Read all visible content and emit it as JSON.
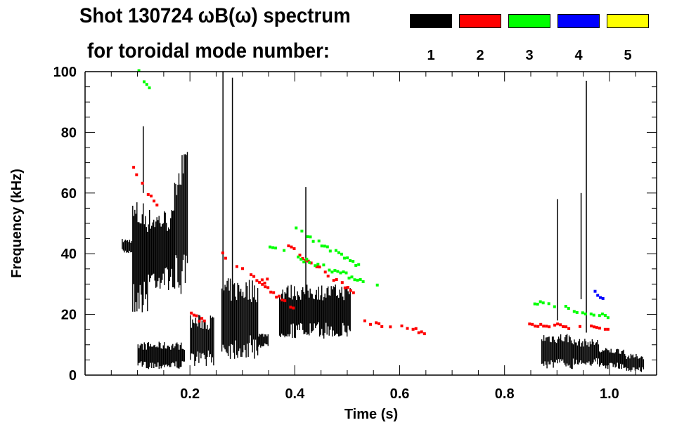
{
  "chart_data": {
    "type": "heatmap",
    "title": "Shot 130724 ωB(ω) spectrum",
    "subtitle": "for toroidal mode number:",
    "xlabel": "Time (s)",
    "ylabel": "Frequency (kHz)",
    "xlim": [
      0,
      1.09
    ],
    "ylim": [
      0,
      100
    ],
    "xticks": [
      0.2,
      0.4,
      0.6,
      0.8,
      1.0
    ],
    "xtick_labels": [
      "0.2",
      "0.4",
      "0.6",
      "0.8",
      "1.0"
    ],
    "yticks": [
      0,
      20,
      40,
      60,
      80,
      100
    ],
    "ytick_labels": [
      "0",
      "20",
      "40",
      "60",
      "80",
      "100"
    ],
    "legend": {
      "placement": "top-right",
      "entries": [
        {
          "label": "1",
          "color": "#000000"
        },
        {
          "label": "2",
          "color": "#ff0000"
        },
        {
          "label": "3",
          "color": "#00ff00"
        },
        {
          "label": "4",
          "color": "#0000ff"
        },
        {
          "label": "5",
          "color": "#ffff00"
        }
      ]
    },
    "blobs": [
      {
        "mode": 1,
        "t": [
          0.07,
          0.09
        ],
        "f": [
          40,
          45
        ]
      },
      {
        "mode": 1,
        "t": [
          0.09,
          0.12
        ],
        "f": [
          20,
          58
        ]
      },
      {
        "mode": 1,
        "t": [
          0.12,
          0.17
        ],
        "f": [
          28,
          55
        ]
      },
      {
        "mode": 1,
        "t": [
          0.17,
          0.195
        ],
        "f": [
          25,
          74
        ]
      },
      {
        "mode": 1,
        "t": [
          0.1,
          0.19
        ],
        "f": [
          2,
          11
        ]
      },
      {
        "mode": 1,
        "t": [
          0.2,
          0.245
        ],
        "f": [
          3,
          20
        ]
      },
      {
        "mode": 1,
        "t": [
          0.26,
          0.33
        ],
        "f": [
          5,
          32
        ]
      },
      {
        "mode": 1,
        "t": [
          0.33,
          0.35
        ],
        "f": [
          9,
          14
        ]
      },
      {
        "mode": 1,
        "t": [
          0.37,
          0.505
        ],
        "f": [
          12,
          30
        ]
      },
      {
        "mode": 1,
        "t": [
          0.87,
          0.93
        ],
        "f": [
          2,
          14
        ]
      },
      {
        "mode": 1,
        "t": [
          0.93,
          0.98
        ],
        "f": [
          3,
          12
        ]
      },
      {
        "mode": 1,
        "t": [
          0.98,
          1.03
        ],
        "f": [
          2,
          9
        ]
      },
      {
        "mode": 1,
        "t": [
          1.03,
          1.065
        ],
        "f": [
          1,
          7
        ]
      }
    ],
    "streaks": [
      {
        "mode": 1,
        "t": 0.262,
        "f": [
          10,
          100
        ]
      },
      {
        "mode": 1,
        "t": 0.28,
        "f": [
          10,
          98
        ]
      },
      {
        "mode": 1,
        "t": 0.42,
        "f": [
          25,
          62
        ]
      },
      {
        "mode": 1,
        "t": 0.9,
        "f": [
          18,
          58
        ]
      },
      {
        "mode": 1,
        "t": 0.955,
        "f": [
          14,
          97
        ]
      },
      {
        "mode": 1,
        "t": 0.945,
        "f": [
          25,
          60
        ]
      },
      {
        "mode": 1,
        "t": 0.11,
        "f": [
          60,
          82
        ]
      }
    ],
    "chirps": [
      {
        "mode": 2,
        "t": [
          0.09,
          0.14
        ],
        "f": [
          68,
          54
        ]
      },
      {
        "mode": 2,
        "t": [
          0.26,
          0.4
        ],
        "f": [
          40,
          21
        ]
      },
      {
        "mode": 2,
        "t": [
          0.325,
          0.35
        ],
        "f": [
          31,
          31
        ]
      },
      {
        "mode": 2,
        "t": [
          0.38,
          0.52
        ],
        "f": [
          43,
          26
        ]
      },
      {
        "mode": 2,
        "t": [
          0.52,
          0.65
        ],
        "f": [
          18,
          14
        ]
      },
      {
        "mode": 2,
        "t": [
          0.2,
          0.23
        ],
        "f": [
          20,
          17
        ]
      },
      {
        "mode": 2,
        "t": [
          0.845,
          1.0
        ],
        "f": [
          17,
          15
        ]
      },
      {
        "mode": 3,
        "t": [
          0.35,
          0.56
        ],
        "f": [
          42,
          29
        ]
      },
      {
        "mode": 3,
        "t": [
          0.4,
          0.53
        ],
        "f": [
          48,
          35
        ]
      },
      {
        "mode": 3,
        "t": [
          0.855,
          1.0
        ],
        "f": [
          24,
          19
        ]
      },
      {
        "mode": 3,
        "t": [
          0.1,
          0.13
        ],
        "f": [
          100,
          92
        ]
      },
      {
        "mode": 4,
        "t": [
          0.97,
          0.99
        ],
        "f": [
          27,
          24
        ]
      }
    ]
  }
}
